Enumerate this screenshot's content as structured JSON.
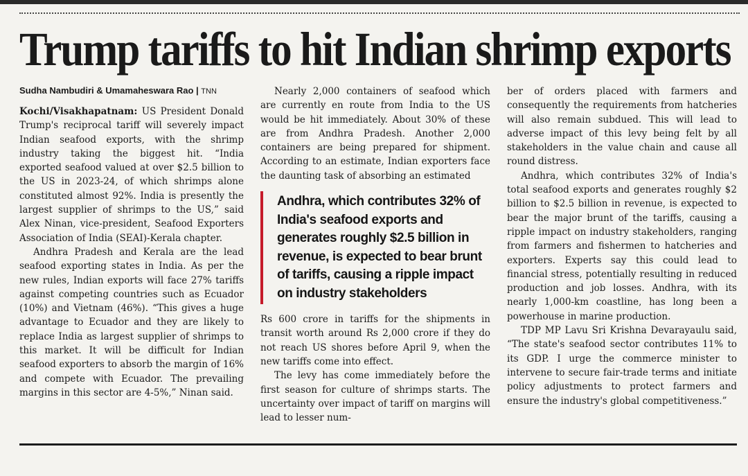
{
  "article": {
    "headline": "Trump tariffs to hit Indian shrimp exports",
    "byline_authors": "Sudha Nambudiri & Umamaheswara Rao",
    "byline_agency": "TNN",
    "dateline": "Kochi/Visakhapatnam:",
    "col1": {
      "p1": "US President Donald Trump's reciprocal tariff will severely impact Indian seafood exports, with the shrimp industry taking the biggest hit. “India exported seafood valued at over $2.5 billion to the US in 2023-24, of which shrimps alone constituted almost 92%. India is presently the largest supplier of shrimps to the US,” said Alex Ninan, vice-president, Seafood Exporters Association of India (SEAI)-Kerala chapter.",
      "p2": "Andhra Pradesh and Kerala are the lead seafood exporting states in India. As per the new rules, Indian exports will face 27% tariffs against competing countries such as Ecuador (10%) and Vietnam (46%). “This gives a huge advantage to Ecuador and they are likely to replace India as largest supplier of shrimps to this market. It will be difficult for Indian seafood exporters to absorb the margin of 16% and compete with Ecuador. The prevailing margins in this sector are 4-5%,” Ninan said."
    },
    "col2": {
      "p1": "Nearly 2,000 containers of seafood which are currently en route from India to the US would be hit immediately. About 30% of these are from Andhra Pradesh. Another 2,000 containers are being prepared for shipment. According to an estimate, Indian exporters face the daunting task of absorbing an estimated",
      "pullquote": "Andhra, which contributes 32% of India's seafood exports and generates roughly $2.5 billion in revenue, is expected to bear brunt of tariffs, causing a ripple impact on industry stakeholders",
      "p2": "Rs 600 crore in tariffs for the shipments in transit worth around Rs 2,000 crore if they do not reach US shores before April 9, when the new tariffs come into effect.",
      "p3": "The levy has come immediately before the first season for culture of shrimps starts. The uncertainty over impact of tariff on margins will lead to lesser num-"
    },
    "col3": {
      "p1": "ber of orders placed with farmers and consequently the requirements from hatcheries will also remain subdued. This will lead to adverse impact of this levy being felt by all stakeholders in the value chain and cause all round distress.",
      "p2": "Andhra, which contributes 32% of India's total seafood exports and generates roughly $2 billion to $2.5 billion in revenue, is expected to bear the major brunt of the tariffs, causing a ripple impact on industry stakeholders, ranging from farmers and fishermen to hatcheries and exporters. Experts say this could lead to financial stress, potentially resulting in reduced production and job losses. Andhra, with its nearly 1,000-km coastline, has long been a powerhouse in marine production.",
      "p3": "TDP MP Lavu Sri Krishna Devarayaulu said, “The state's seafood sector contributes 11% to its GDP. I urge the commerce minister to intervene to secure fair-trade terms and initiate policy adjustments to protect farmers and ensure the industry's global competitiveness.”"
    },
    "colors": {
      "pullquote_rule": "#c51b2a",
      "paper": "#f4f3ef",
      "ink": "#1a1a1a"
    }
  }
}
